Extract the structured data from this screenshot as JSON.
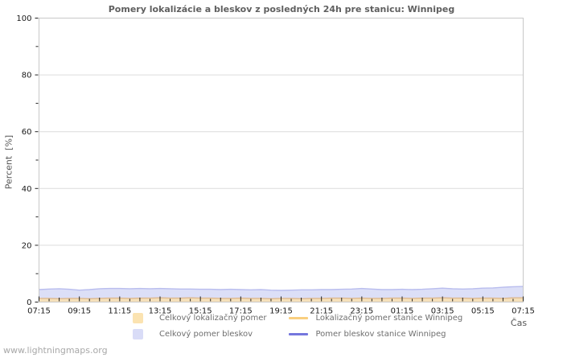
{
  "title": "Pomery lokalizácie a bleskov z posledných 24h pre stanicu: Winnipeg",
  "watermark": "www.lightningmaps.org",
  "y_axis": {
    "label": "Percent  [%]",
    "major_ticks": [
      0,
      20,
      40,
      60,
      80,
      100
    ],
    "minor_ticks": [
      10,
      30,
      50,
      70,
      90
    ],
    "range": [
      0,
      100
    ]
  },
  "x_axis": {
    "label": "Čas",
    "tick_labels": [
      "07:15",
      "09:15",
      "11:15",
      "13:15",
      "15:15",
      "17:15",
      "19:15",
      "21:15",
      "23:15",
      "01:15",
      "03:15",
      "05:15",
      "07:15"
    ]
  },
  "legend": {
    "items": [
      {
        "label": "Celkový lokalizačný pomer",
        "swatch": "square",
        "color": "#fbe3b1"
      },
      {
        "label": "Lokalizačný pomer stanice Winnipeg",
        "swatch": "line",
        "color": "#f9cf7f"
      },
      {
        "label": "Celkový pomer bleskov",
        "swatch": "square",
        "color": "#d9dcf7"
      },
      {
        "label": "Pomer bleskov stanice Winnipeg",
        "swatch": "line",
        "color": "#7577dd"
      }
    ]
  },
  "chart_data": {
    "type": "area",
    "title": "Pomery lokalizácie a bleskov z posledných 24h pre stanicu: Winnipeg",
    "xlabel": "Čas",
    "ylabel": "Percent [%]",
    "ylim": [
      0,
      100
    ],
    "grid": true,
    "legend_position": "bottom",
    "x_tick_labels": [
      "07:15",
      "09:15",
      "11:15",
      "13:15",
      "15:15",
      "17:15",
      "19:15",
      "21:15",
      "23:15",
      "01:15",
      "03:15",
      "05:15",
      "07:15"
    ],
    "points_per_labeled_tick": 4,
    "sample_interval_minutes": 30,
    "series": [
      {
        "name": "Celkový pomer bleskov",
        "style": "area",
        "fill": "#dcdff7",
        "stroke": "#b9bdee",
        "values": [
          4.4,
          4.6,
          4.7,
          4.5,
          4.2,
          4.4,
          4.7,
          4.8,
          4.8,
          4.7,
          4.8,
          4.7,
          4.8,
          4.7,
          4.6,
          4.6,
          4.5,
          4.5,
          4.4,
          4.5,
          4.4,
          4.3,
          4.4,
          4.2,
          4.1,
          4.2,
          4.3,
          4.3,
          4.4,
          4.4,
          4.5,
          4.6,
          4.8,
          4.6,
          4.4,
          4.4,
          4.5,
          4.4,
          4.5,
          4.7,
          4.9,
          4.7,
          4.6,
          4.7,
          4.9,
          5.0,
          5.2,
          5.4,
          5.5
        ]
      },
      {
        "name": "Celkový lokalizačný pomer",
        "style": "area",
        "fill": "rgba(251,224,170,0.80)",
        "stroke": "rgba(219,178,132,0.85)",
        "values": [
          1.3,
          1.3,
          1.2,
          1.3,
          1.3,
          1.2,
          1.3,
          1.4,
          1.4,
          1.3,
          1.4,
          1.4,
          1.5,
          1.4,
          1.4,
          1.5,
          1.4,
          1.4,
          1.3,
          1.3,
          1.4,
          1.3,
          1.3,
          1.2,
          1.3,
          1.3,
          1.2,
          1.3,
          1.3,
          1.4,
          1.4,
          1.3,
          1.4,
          1.3,
          1.3,
          1.4,
          1.4,
          1.3,
          1.4,
          1.4,
          1.5,
          1.4,
          1.4,
          1.3,
          1.4,
          1.4,
          1.3,
          1.5,
          1.5
        ]
      }
    ],
    "note_series_in_legend_only": [
      "Lokalizačný pomer stanice Winnipeg",
      "Pomer bleskov stanice Winnipeg"
    ]
  },
  "colors": {
    "grid": "#dcdcdc",
    "plot_border": "#c8c8c8",
    "tick": "#222222",
    "tick_label": "#1a1a1a",
    "title_text": "#5f5f5f",
    "axis_title_text": "#555555",
    "legend_text": "#6e6e6e",
    "watermark_text": "#a8a8a8"
  }
}
